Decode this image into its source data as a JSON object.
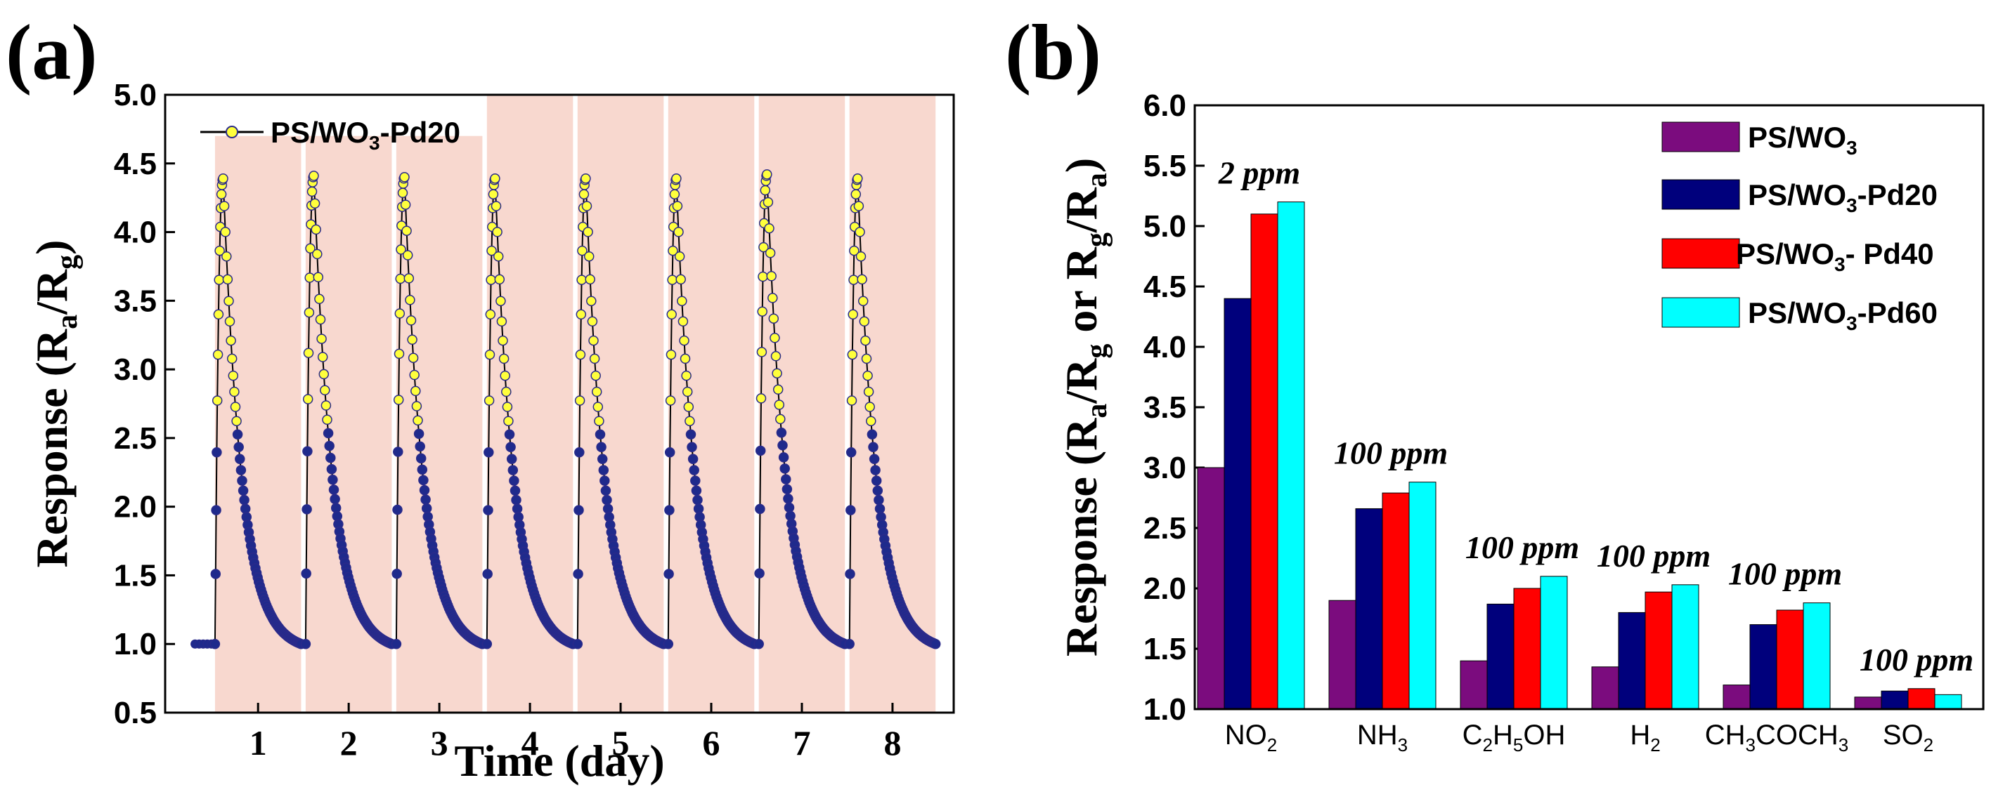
{
  "panels": {
    "a": "(a)",
    "b": "(b)"
  },
  "colors": {
    "shade": "#f8d8cf",
    "marker_face": "#ffff3c",
    "marker_edge": "#2a2a8a",
    "tail": "#1f2a8c",
    "PS_WO3": "#7b0c7e",
    "PS_WO3_Pd20": "#00007c",
    "PS_WO3_Pd40": "#ff0000",
    "PS_WO3_Pd60": "#00ffff"
  },
  "chart_data": [
    {
      "id": "a",
      "type": "line",
      "title": "",
      "xlabel": "Time (day)",
      "ylabel": {
        "main": "Response (R",
        "sub1": "a",
        "mid": "/R",
        "sub2": "g",
        "end": ")"
      },
      "ylim": [
        0.5,
        5.0
      ],
      "yticks": [
        "0.5",
        "1.0",
        "1.5",
        "2.0",
        "2.5",
        "3.0",
        "3.5",
        "4.0",
        "4.5",
        "5.0"
      ],
      "xlim": [
        0,
        8.7
      ],
      "day_labels": [
        "1",
        "2",
        "3",
        "4",
        "5",
        "6",
        "7",
        "8"
      ],
      "legend": {
        "prefix": "PS/WO",
        "sub": "3",
        "suffix": "-Pd20",
        "position": "top-left"
      },
      "series": [
        {
          "name": "PS/WO3-Pd20",
          "baseline": 1.0,
          "cycles": [
            {
              "day": 1,
              "start": 0.55,
              "peak": 4.39,
              "end": 1.0
            },
            {
              "day": 2,
              "start": 1.55,
              "peak": 4.41,
              "end": 1.0
            },
            {
              "day": 3,
              "start": 2.55,
              "peak": 4.4,
              "end": 1.0
            },
            {
              "day": 4,
              "start": 3.55,
              "peak": 4.39,
              "end": 1.0
            },
            {
              "day": 5,
              "start": 4.55,
              "peak": 4.39,
              "end": 1.0
            },
            {
              "day": 6,
              "start": 5.55,
              "peak": 4.39,
              "end": 1.0
            },
            {
              "day": 7,
              "start": 6.55,
              "peak": 4.42,
              "end": 1.0
            },
            {
              "day": 8,
              "start": 7.55,
              "peak": 4.39,
              "end": 1.0
            }
          ]
        }
      ]
    },
    {
      "id": "b",
      "type": "bar",
      "title": "",
      "xlabel": "",
      "ylabel": {
        "main": "Response (R",
        "sub1": "a",
        "mid": "/R",
        "sub2": "g",
        "mid2": " or R",
        "sub3": "g",
        "mid3": "/R",
        "sub4": "a",
        "end": ")"
      },
      "ylim": [
        1.0,
        6.0
      ],
      "yticks": [
        "1.0",
        "1.5",
        "2.0",
        "2.5",
        "3.0",
        "3.5",
        "4.0",
        "4.5",
        "5.0",
        "5.5",
        "6.0"
      ],
      "categories": [
        {
          "parts": [
            "NO",
            "2"
          ]
        },
        {
          "parts": [
            "NH",
            "3"
          ]
        },
        {
          "parts": [
            "C",
            "2",
            "H",
            "5",
            "OH"
          ]
        },
        {
          "parts": [
            "H",
            "2"
          ]
        },
        {
          "parts": [
            "CH",
            "3",
            "COCH",
            "3"
          ]
        },
        {
          "parts": [
            "SO",
            "2"
          ]
        }
      ],
      "annotations": [
        "2 ppm",
        "100 ppm",
        "100 ppm",
        "100 ppm",
        "100 ppm",
        "100 ppm"
      ],
      "series": [
        {
          "name": "PS/WO3",
          "legend": {
            "prefix": "PS/WO",
            "sub": "3",
            "suffix": ""
          },
          "values": [
            3.0,
            1.9,
            1.4,
            1.35,
            1.2,
            1.1
          ]
        },
        {
          "name": "PS/WO3-Pd20",
          "legend": {
            "prefix": "PS/WO",
            "sub": "3",
            "suffix": "-Pd20"
          },
          "values": [
            4.4,
            2.66,
            1.87,
            1.8,
            1.7,
            1.15
          ]
        },
        {
          "name": "PS/WO3- Pd40",
          "legend": {
            "prefix": "PS/WO",
            "sub": "3",
            "suffix": "- Pd40"
          },
          "values": [
            5.1,
            2.79,
            2.0,
            1.97,
            1.82,
            1.17
          ]
        },
        {
          "name": "PS/WO3-Pd60",
          "legend": {
            "prefix": "PS/WO",
            "sub": "3",
            "suffix": "-Pd60"
          },
          "values": [
            5.2,
            2.88,
            2.1,
            2.03,
            1.88,
            1.12
          ]
        }
      ],
      "legend_position": "top-right"
    }
  ]
}
